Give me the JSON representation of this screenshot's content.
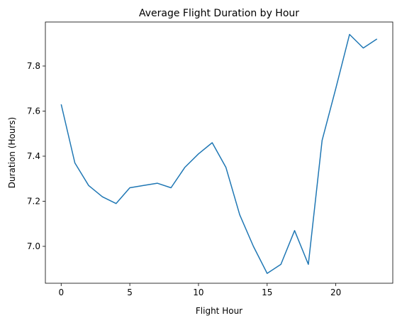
{
  "chart_data": {
    "type": "line",
    "title": "Average Flight Duration by Hour",
    "xlabel": "Flight Hour",
    "ylabel": "Duration (Hours)",
    "xlim": [
      -1.15,
      24.15
    ],
    "ylim": [
      6.83,
      9.74
    ],
    "x_ticks": [
      0,
      5,
      10,
      15,
      20
    ],
    "y_ticks": [
      7.0,
      7.2,
      7.4,
      7.6,
      7.8
    ],
    "y_tick_labels": [
      "7.0",
      "7.2",
      "7.4",
      "7.6",
      "7.8"
    ],
    "grid": false,
    "line_color": "#1f77b4",
    "series": [
      {
        "x": [
          0,
          1,
          2,
          3,
          4,
          5,
          6,
          7,
          8,
          9,
          10,
          11,
          12,
          13,
          14,
          15,
          16,
          17,
          18,
          19,
          20,
          21,
          22,
          23
        ],
        "values": [
          7.63,
          7.37,
          7.27,
          7.22,
          7.19,
          7.26,
          7.27,
          7.28,
          7.26,
          7.35,
          7.41,
          7.46,
          7.35,
          7.14,
          7.0,
          6.88,
          6.92,
          7.07,
          6.92,
          7.47,
          7.7,
          7.94,
          7.88,
          7.92
        ]
      }
    ]
  }
}
